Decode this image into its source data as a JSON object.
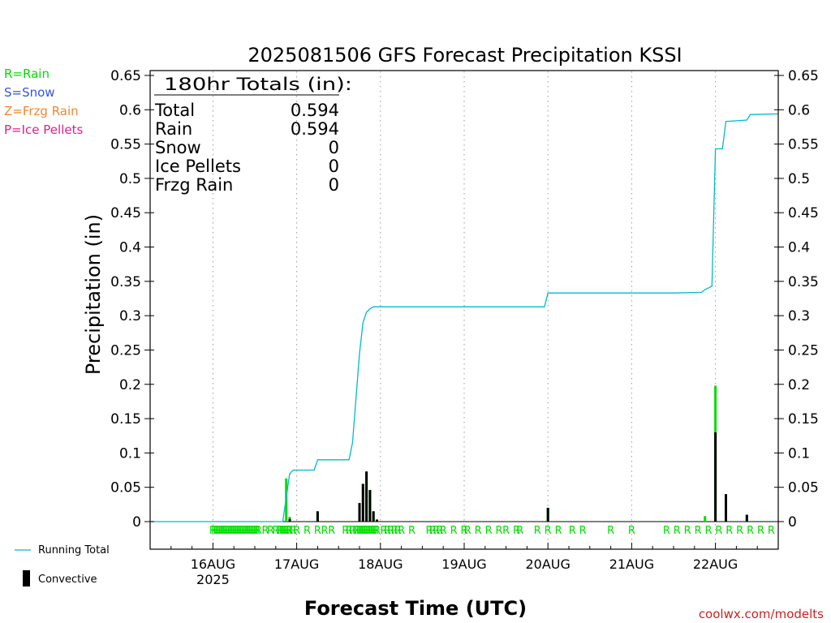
{
  "chart_data": {
    "type": "bar",
    "title": "2025081506 GFS Forecast Precipitation KSSI",
    "ylabel": "Precipitation  (in)",
    "xlabel": "Forecast Time (UTC)",
    "ylim": [
      0,
      0.65
    ],
    "y_ticks": [
      0,
      0.05,
      0.1,
      0.15,
      0.2,
      0.25,
      0.3,
      0.35,
      0.4,
      0.45,
      0.5,
      0.55,
      0.6,
      0.65
    ],
    "y_tick_labels": [
      "0",
      "0.05",
      "0.1",
      "0.15",
      "0.2",
      "0.25",
      "0.3",
      "0.35",
      "0.4",
      "0.45",
      "0.5",
      "0.55",
      "0.6",
      "0.65"
    ],
    "x_range_hours": [
      0,
      180
    ],
    "x_ticks": [
      {
        "hour": 18,
        "label": "16AUG",
        "sublabel": "2025"
      },
      {
        "hour": 42,
        "label": "17AUG",
        "sublabel": ""
      },
      {
        "hour": 66,
        "label": "18AUG",
        "sublabel": ""
      },
      {
        "hour": 90,
        "label": "19AUG",
        "sublabel": ""
      },
      {
        "hour": 114,
        "label": "20AUG",
        "sublabel": ""
      },
      {
        "hour": 138,
        "label": "21AUG",
        "sublabel": ""
      },
      {
        "hour": 162,
        "label": "22AUG",
        "sublabel": ""
      }
    ],
    "grid": "vertical-dotted",
    "colors": {
      "rain": "#00dd00",
      "snow": "#3355dd",
      "frzg_rain": "#ee8833",
      "ice_pellets": "#dd2288",
      "running_total": "#00bbcc",
      "convective": "#000000",
      "footer": "#cc2222"
    },
    "bars": [
      {
        "hour": 39,
        "total": 0.063,
        "convective": 0.0
      },
      {
        "hour": 40,
        "total": 0.007,
        "convective": 0.004
      },
      {
        "hour": 48,
        "total": 0.015,
        "convective": 0.015
      },
      {
        "hour": 60,
        "total": 0.027,
        "convective": 0.027
      },
      {
        "hour": 61,
        "total": 0.055,
        "convective": 0.055
      },
      {
        "hour": 62,
        "total": 0.073,
        "convective": 0.073
      },
      {
        "hour": 63,
        "total": 0.046,
        "convective": 0.046
      },
      {
        "hour": 64,
        "total": 0.015,
        "convective": 0.015
      },
      {
        "hour": 65,
        "total": 0.003,
        "convective": 0.003
      },
      {
        "hour": 114,
        "total": 0.02,
        "convective": 0.02
      },
      {
        "hour": 159,
        "total": 0.008,
        "convective": 0.0
      },
      {
        "hour": 162,
        "total": 0.198,
        "convective": 0.13
      },
      {
        "hour": 165,
        "total": 0.04,
        "convective": 0.04
      },
      {
        "hour": 171,
        "total": 0.01,
        "convective": 0.01
      }
    ],
    "running_total": {
      "hours": [
        0,
        38,
        39,
        40,
        41,
        45,
        47,
        48,
        57,
        58,
        59,
        60,
        61,
        62,
        63,
        64,
        66,
        113,
        114,
        150,
        158,
        159,
        161,
        162,
        164,
        165,
        171,
        172,
        180
      ],
      "values": [
        0,
        0,
        0.035,
        0.07,
        0.075,
        0.075,
        0.075,
        0.09,
        0.09,
        0.115,
        0.18,
        0.245,
        0.29,
        0.305,
        0.31,
        0.313,
        0.313,
        0.313,
        0.333,
        0.333,
        0.334,
        0.338,
        0.343,
        0.543,
        0.543,
        0.583,
        0.585,
        0.593,
        0.594
      ]
    },
    "ptype_markers": {
      "text": "R",
      "hours": [
        18,
        18.5,
        19,
        19.5,
        20,
        20.5,
        21,
        21.5,
        22,
        22.5,
        23,
        23.5,
        24,
        24.5,
        25,
        25.5,
        26,
        26.5,
        27,
        27.5,
        28,
        28.5,
        29,
        29.5,
        30,
        30.5,
        31,
        33,
        34.5,
        36,
        37,
        37.5,
        38,
        38.5,
        39,
        39.5,
        40,
        41,
        42,
        45,
        48,
        50,
        52,
        56,
        57,
        58,
        59,
        59.5,
        60,
        60.5,
        61,
        61.5,
        62,
        62.5,
        63,
        63.5,
        64,
        64.5,
        65,
        67,
        68,
        69,
        70,
        71,
        72,
        75,
        80,
        81,
        82,
        83,
        84,
        87,
        90,
        91,
        94,
        97,
        100,
        102,
        105,
        106,
        111,
        114,
        117,
        121,
        124,
        132,
        138,
        148,
        151,
        154,
        157,
        160,
        163,
        166,
        169,
        172,
        175,
        178
      ]
    },
    "totals_box": {
      "header": "180hr Totals (in):",
      "rows": [
        {
          "label": "Total",
          "value": "0.594"
        },
        {
          "label": "Rain",
          "value": "0.594"
        },
        {
          "label": "Snow",
          "value": "0"
        },
        {
          "label": "Ice Pellets",
          "value": "0"
        },
        {
          "label": "Frzg Rain",
          "value": "0"
        }
      ]
    },
    "ptype_legend": [
      {
        "text": "R=Rain",
        "color": "#00dd00"
      },
      {
        "text": "S=Snow",
        "color": "#3355dd"
      },
      {
        "text": "Z=Frzg Rain",
        "color": "#ee8833"
      },
      {
        "text": "P=Ice Pellets",
        "color": "#dd2288"
      }
    ],
    "legend": {
      "running_total": "Running Total",
      "convective": "Convective"
    },
    "footer": "coolwx.com/modelts"
  }
}
